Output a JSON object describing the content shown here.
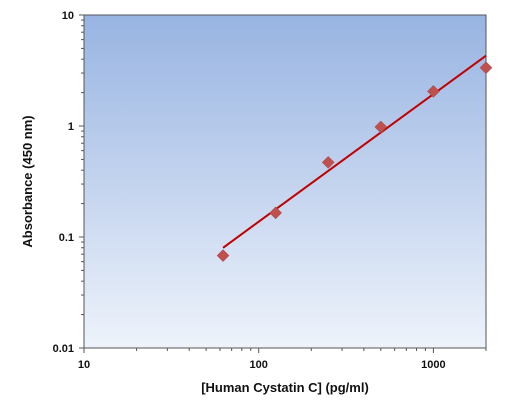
{
  "chart_data": {
    "type": "scatter",
    "title": "",
    "xlabel": "[Human Cystatin C] (pg/ml)",
    "ylabel": "Absorbance (450 nm)",
    "x_scale": "log",
    "y_scale": "log",
    "xlim": [
      10,
      2000
    ],
    "ylim": [
      0.01,
      10
    ],
    "x_ticks": [
      {
        "value": 10,
        "label": "10"
      },
      {
        "value": 100,
        "label": "100"
      },
      {
        "value": 1000,
        "label": "1000"
      }
    ],
    "y_ticks": [
      {
        "value": 0.01,
        "label": "0.01"
      },
      {
        "value": 0.1,
        "label": "0.1"
      },
      {
        "value": 1,
        "label": "1"
      },
      {
        "value": 10,
        "label": "10"
      }
    ],
    "grid": false,
    "legend": "none",
    "series": [
      {
        "kind": "points",
        "marker": "diamond",
        "color": "#c0504d",
        "x": [
          62.5,
          125,
          250,
          500,
          1000,
          2000
        ],
        "y": [
          0.068,
          0.165,
          0.47,
          0.98,
          2.05,
          3.35
        ]
      },
      {
        "kind": "fit-line",
        "color": "#c00000",
        "x": [
          62.5,
          2000
        ],
        "y": [
          0.08,
          4.3
        ]
      }
    ],
    "colors": {
      "plot_bg_top": "#98b4e2",
      "plot_bg_bottom": "#eef3fb",
      "axis": "#555555"
    }
  }
}
